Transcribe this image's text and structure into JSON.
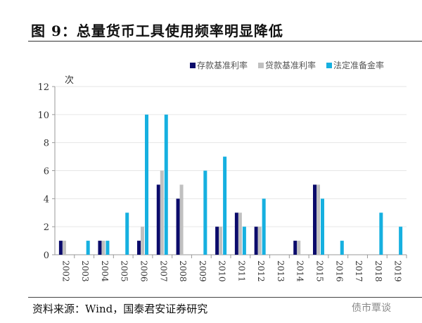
{
  "title": "图 9：总量货币工具使用频率明显降低",
  "source": "资料来源：Wind，国泰君安证券研究",
  "watermark": "债市覃谈",
  "colors": {
    "deposit": "#0b0b6b",
    "loan": "#c0c0c0",
    "rrr": "#16b0e0"
  },
  "chart_data": {
    "type": "bar",
    "title": "",
    "ylabel": "次",
    "xlabel": "",
    "ylim": [
      0,
      12
    ],
    "yticks": [
      0,
      2,
      4,
      6,
      8,
      10,
      12
    ],
    "grid": true,
    "legend_position": "top-center",
    "categories": [
      "2002",
      "2003",
      "2004",
      "2005",
      "2006",
      "2007",
      "2008",
      "2009",
      "2010",
      "2011",
      "2012",
      "2013",
      "2014",
      "2015",
      "2016",
      "2017",
      "2018",
      "2019"
    ],
    "series": [
      {
        "name": "存款基准利率",
        "color_key": "deposit",
        "values": [
          1,
          0,
          1,
          0,
          1,
          5,
          4,
          0,
          2,
          3,
          2,
          0,
          1,
          5,
          0,
          0,
          0,
          0
        ]
      },
      {
        "name": "贷款基准利率",
        "color_key": "loan",
        "values": [
          1,
          0,
          1,
          0,
          2,
          6,
          5,
          0,
          2,
          3,
          2,
          0,
          1,
          5,
          0,
          0,
          0,
          0
        ]
      },
      {
        "name": "法定准备金率",
        "color_key": "rrr",
        "values": [
          0,
          1,
          1,
          3,
          10,
          10,
          0,
          6,
          7,
          2,
          4,
          0,
          0,
          4,
          1,
          0,
          3,
          2
        ]
      }
    ]
  }
}
